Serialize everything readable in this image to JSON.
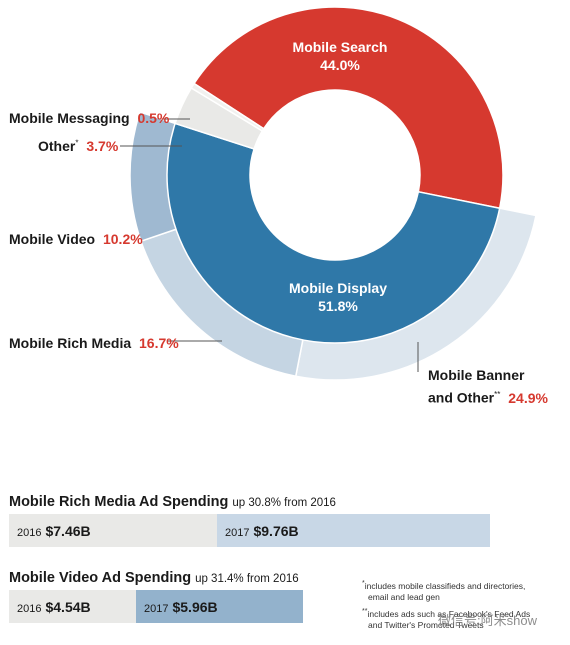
{
  "colors": {
    "search": "#d6392f",
    "display": "#2f78a8",
    "banner": "#dde6ee",
    "rich": "#c5d5e3",
    "video": "#9fb9d1",
    "other": "#e9e9e7",
    "messaging": "#f1f1ef",
    "accent_text": "#d6392f",
    "bar_gray": "#e9e9e7",
    "bar_light_blue": "#c8d7e6",
    "bar_mid_blue": "#93b2cc"
  },
  "chart_data": [
    {
      "type": "pie",
      "title": "",
      "inner_ring": [
        {
          "name": "Mobile Search",
          "value": 44.0,
          "label": "44.0%"
        },
        {
          "name": "Mobile Display",
          "value": 51.8,
          "label": "51.8%"
        },
        {
          "name": "Other",
          "value": 3.7,
          "label": "3.7%"
        },
        {
          "name": "Mobile Messaging",
          "value": 0.5,
          "label": "0.5%"
        }
      ],
      "outer_ring": [
        {
          "name": "Mobile Banner and Other",
          "value": 24.9,
          "label": "24.9%"
        },
        {
          "name": "Mobile Rich Media",
          "value": 16.7,
          "label": "16.7%"
        },
        {
          "name": "Mobile Video",
          "value": 10.2,
          "label": "10.2%"
        }
      ]
    },
    {
      "type": "bar",
      "title": "Mobile Rich Media Ad Spending",
      "subtitle": "up 30.8% from 2016",
      "categories": [
        "2016",
        "2017"
      ],
      "values": [
        7.46,
        9.76
      ],
      "value_labels": [
        "$7.46B",
        "$9.76B"
      ]
    },
    {
      "type": "bar",
      "title": "Mobile Video Ad Spending",
      "subtitle": "up 31.4% from 2016",
      "categories": [
        "2016",
        "2017"
      ],
      "values": [
        4.54,
        5.96
      ],
      "value_labels": [
        "$4.54B",
        "$5.96B"
      ]
    }
  ],
  "labels": {
    "search_name": "Mobile Search",
    "search_pct": "44.0%",
    "display_name": "Mobile Display",
    "display_pct": "51.8%",
    "messaging_name": "Mobile Messaging",
    "messaging_pct": "0.5%",
    "other_name": "Other",
    "other_mark": "*",
    "other_pct": "3.7%",
    "video_name": "Mobile Video",
    "video_pct": "10.2%",
    "rich_name": "Mobile Rich Media",
    "rich_pct": "16.7%",
    "banner_line1": "Mobile Banner",
    "banner_line2": "and Other",
    "banner_mark": "**",
    "banner_pct": "24.9%"
  },
  "notes": {
    "note1_mark": "*",
    "note1_line1": "includes mobile classifieds and directories,",
    "note1_line2": "email and lead gen",
    "note2_mark": "**",
    "note2_line1": "includes ads such as Facebook's Feed Ads",
    "note2_line2": "and Twitter's Promoted Tweets"
  },
  "watermark": "微信号:阿米show"
}
